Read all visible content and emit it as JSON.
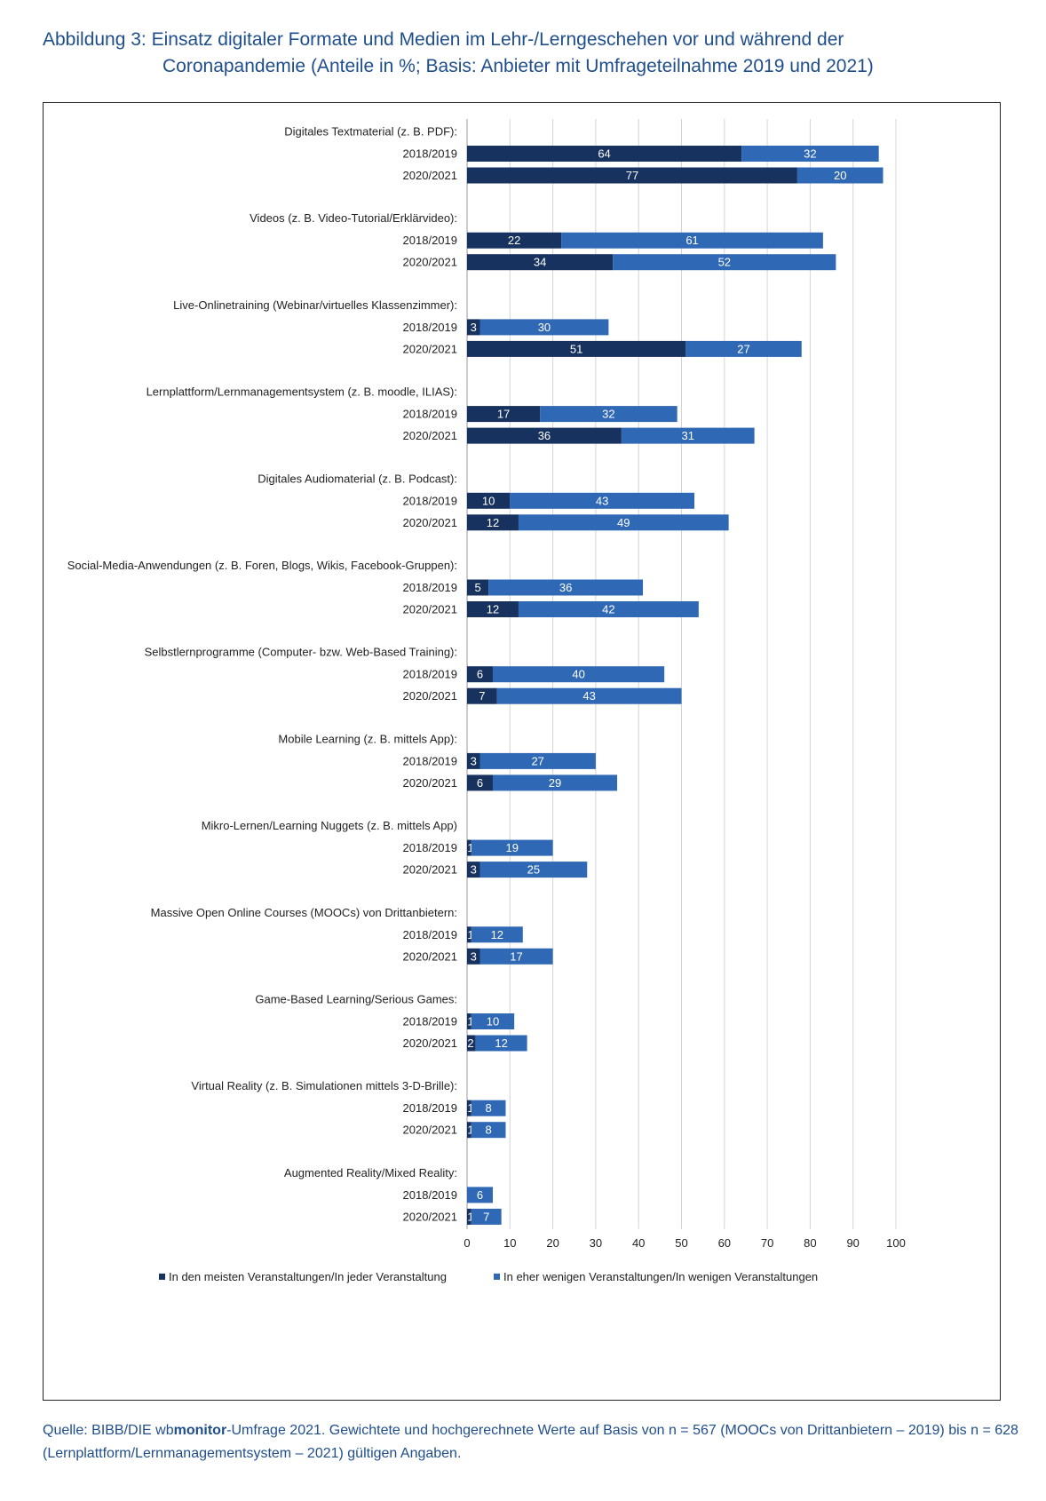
{
  "title": {
    "line1": "Abbildung 3: Einsatz digitaler Formate und Medien im Lehr-/Lerngeschehen vor und während der",
    "line2": "Coronapandemie (Anteile in %; Basis: Anbieter mit Umfrageteilnahme 2019 und 2021)"
  },
  "source": {
    "prefix": "Quelle: BIBB/DIE wb",
    "brand": "monitor",
    "rest": "-Umfrage 2021. Gewichtete und hochgerechnete Werte auf Basis von n = 567 (MOOCs von Drittanbietern – 2019) bis n = 628 (Lernplattform/Lernmanagementsystem – 2021) gültigen Angaben."
  },
  "chart_data": {
    "type": "bar",
    "orientation": "horizontal",
    "stacked": true,
    "xlim": [
      0,
      100
    ],
    "xticks": [
      0,
      10,
      20,
      30,
      40,
      50,
      60,
      70,
      80,
      90,
      100
    ],
    "grid": true,
    "legend_position": "bottom",
    "series": [
      {
        "name": "In den meisten Veranstaltungen/In jeder Veranstaltung",
        "color": "#17325e"
      },
      {
        "name": "In eher wenigen Veranstaltungen/In wenigen Veranstaltungen",
        "color": "#2f68b4"
      }
    ],
    "groups": [
      {
        "label": "Digitales Textmaterial (z. B. PDF):",
        "rows": [
          {
            "year": "2018/2019",
            "values": [
              64,
              32
            ]
          },
          {
            "year": "2020/2021",
            "values": [
              77,
              20
            ]
          }
        ]
      },
      {
        "label": "Videos (z. B. Video-Tutorial/Erklärvideo):",
        "rows": [
          {
            "year": "2018/2019",
            "values": [
              22,
              61
            ]
          },
          {
            "year": "2020/2021",
            "values": [
              34,
              52
            ]
          }
        ]
      },
      {
        "label": "Live-Onlinetraining (Webinar/virtuelles Klassenzimmer):",
        "rows": [
          {
            "year": "2018/2019",
            "values": [
              3,
              30
            ]
          },
          {
            "year": "2020/2021",
            "values": [
              51,
              27
            ]
          }
        ]
      },
      {
        "label": "Lernplattform/Lernmanagementsystem (z. B. moodle, ILIAS):",
        "rows": [
          {
            "year": "2018/2019",
            "values": [
              17,
              32
            ]
          },
          {
            "year": "2020/2021",
            "values": [
              36,
              31
            ]
          }
        ]
      },
      {
        "label": "Digitales Audiomaterial (z. B. Podcast):",
        "rows": [
          {
            "year": "2018/2019",
            "values": [
              10,
              43
            ]
          },
          {
            "year": "2020/2021",
            "values": [
              12,
              49
            ]
          }
        ]
      },
      {
        "label": "Social-Media-Anwendungen (z. B. Foren, Blogs, Wikis, Facebook-Gruppen):",
        "rows": [
          {
            "year": "2018/2019",
            "values": [
              5,
              36
            ]
          },
          {
            "year": "2020/2021",
            "values": [
              12,
              42
            ]
          }
        ]
      },
      {
        "label": "Selbstlernprogramme (Computer- bzw. Web-Based Training):",
        "rows": [
          {
            "year": "2018/2019",
            "values": [
              6,
              40
            ]
          },
          {
            "year": "2020/2021",
            "values": [
              7,
              43
            ]
          }
        ]
      },
      {
        "label": "Mobile Learning (z. B. mittels App):",
        "rows": [
          {
            "year": "2018/2019",
            "values": [
              3,
              27
            ]
          },
          {
            "year": "2020/2021",
            "values": [
              6,
              29
            ]
          }
        ]
      },
      {
        "label": "Mikro-Lernen/Learning Nuggets (z. B. mittels App)",
        "rows": [
          {
            "year": "2018/2019",
            "values": [
              1,
              19
            ]
          },
          {
            "year": "2020/2021",
            "values": [
              3,
              25
            ]
          }
        ]
      },
      {
        "label": "Massive Open Online Courses (MOOCs) von Drittanbietern:",
        "rows": [
          {
            "year": "2018/2019",
            "values": [
              1,
              12
            ]
          },
          {
            "year": "2020/2021",
            "values": [
              3,
              17
            ]
          }
        ]
      },
      {
        "label": "Game-Based Learning/Serious Games:",
        "rows": [
          {
            "year": "2018/2019",
            "values": [
              1,
              10
            ]
          },
          {
            "year": "2020/2021",
            "values": [
              2,
              12
            ]
          }
        ]
      },
      {
        "label": "Virtual Reality (z. B. Simulationen mittels 3-D-Brille):",
        "rows": [
          {
            "year": "2018/2019",
            "values": [
              1,
              8
            ]
          },
          {
            "year": "2020/2021",
            "values": [
              1,
              8
            ]
          }
        ]
      },
      {
        "label": "Augmented Reality/Mixed Reality:",
        "rows": [
          {
            "year": "2018/2019",
            "values": [
              0,
              6
            ]
          },
          {
            "year": "2020/2021",
            "values": [
              1,
              7
            ]
          }
        ]
      }
    ]
  }
}
